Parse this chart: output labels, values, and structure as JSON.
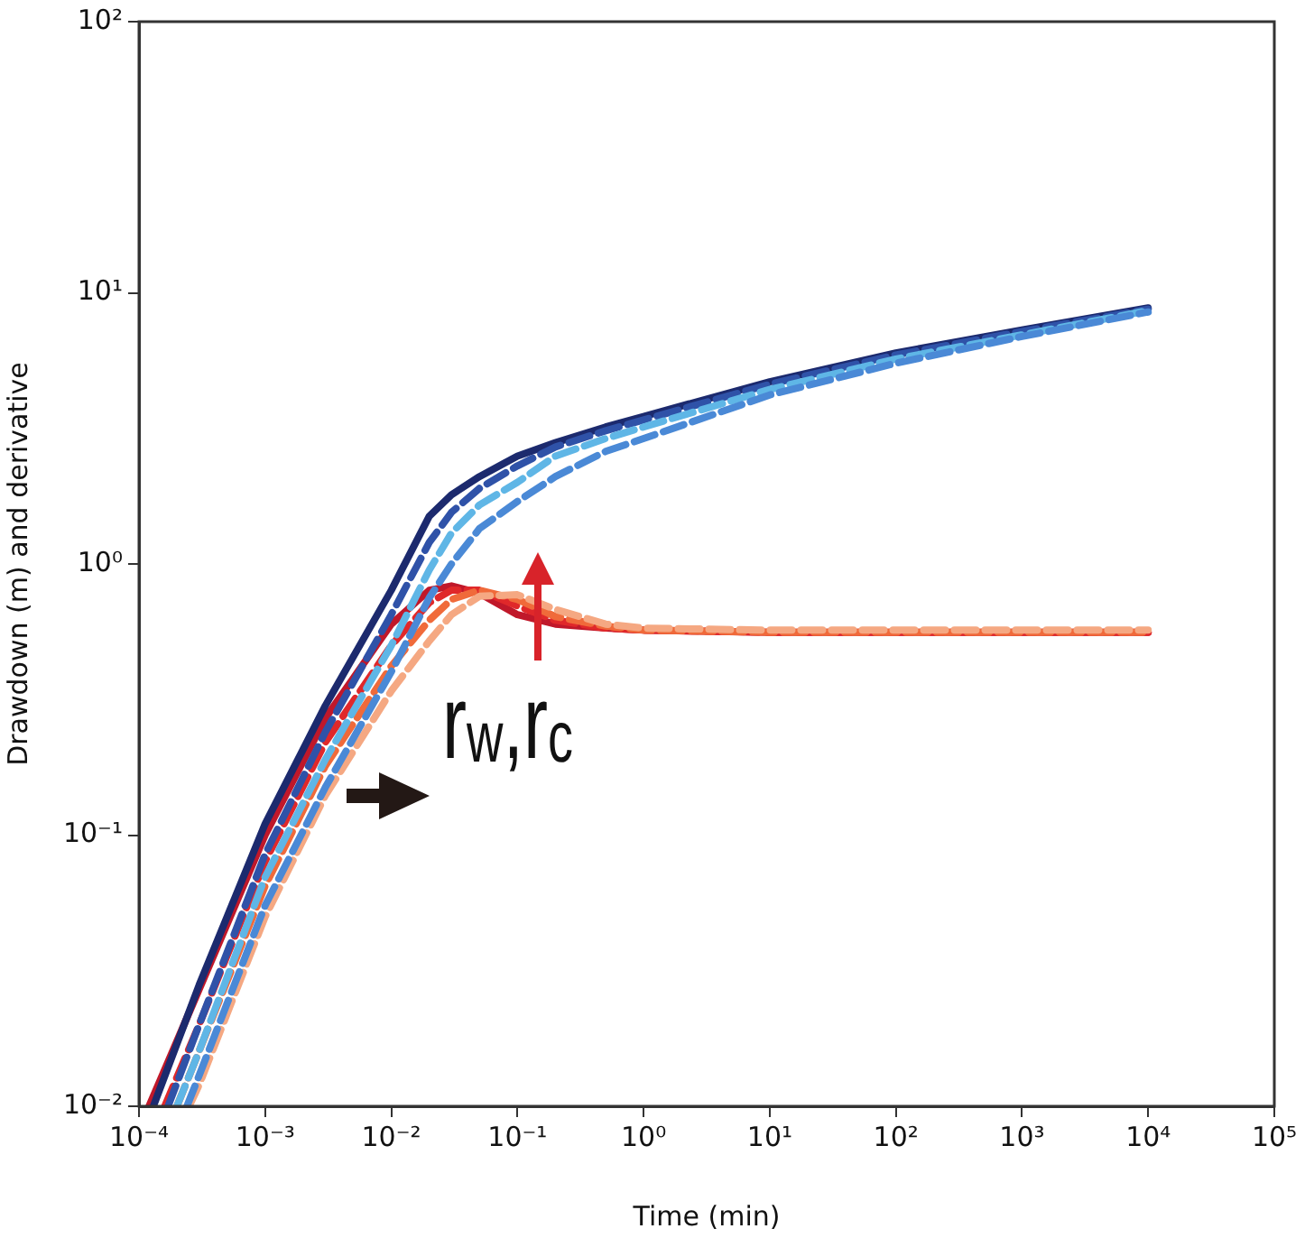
{
  "chart_data": {
    "type": "line",
    "xlabel": "Time (min)",
    "ylabel": "Drawdown (m) and derivative",
    "log": "xy",
    "grid": false,
    "legend": false,
    "marker": "none",
    "xlim": [
      0.0001,
      100000
    ],
    "ylim": [
      0.01,
      100
    ],
    "xticks": [
      {
        "value": 0.0001,
        "label": "10⁻⁴"
      },
      {
        "value": 0.001,
        "label": "10⁻³"
      },
      {
        "value": 0.01,
        "label": "10⁻²"
      },
      {
        "value": 0.1,
        "label": "10⁻¹"
      },
      {
        "value": 1,
        "label": "10⁰"
      },
      {
        "value": 10,
        "label": "10¹"
      },
      {
        "value": 100,
        "label": "10²"
      },
      {
        "value": 1000,
        "label": "10³"
      },
      {
        "value": 10000,
        "label": "10⁴"
      },
      {
        "value": 100000,
        "label": "10⁵"
      }
    ],
    "yticks": [
      {
        "value": 0.01,
        "label": "10⁻²"
      },
      {
        "value": 0.1,
        "label": "10⁻¹"
      },
      {
        "value": 1,
        "label": "10⁰"
      },
      {
        "value": 10,
        "label": "10¹"
      },
      {
        "value": 100,
        "label": "10²"
      }
    ],
    "annotations": [
      "r$_{w}$,r$_{c}$"
    ],
    "series": [
      {
        "color": "#4a89d6",
        "line_style": "dashed",
        "x": [
          0.00024,
          0.0003,
          0.001,
          0.003,
          0.01,
          0.02,
          0.03,
          0.05,
          0.1,
          0.2,
          0.5,
          1,
          10,
          100,
          1000,
          10000
        ],
        "values": [
          0.01,
          0.013,
          0.055,
          0.15,
          0.4,
          0.75,
          1.0,
          1.35,
          1.7,
          2.1,
          2.6,
          2.9,
          4.2,
          5.5,
          6.9,
          8.5
        ]
      },
      {
        "color": "#5fb6e6",
        "line_style": "dashed",
        "x": [
          0.0002,
          0.0003,
          0.001,
          0.003,
          0.01,
          0.02,
          0.03,
          0.05,
          0.1,
          0.2,
          0.5,
          1,
          10,
          100,
          1000,
          10000
        ],
        "values": [
          0.01,
          0.016,
          0.07,
          0.19,
          0.5,
          0.95,
          1.3,
          1.65,
          2.0,
          2.5,
          2.9,
          3.2,
          4.4,
          5.7,
          7.0,
          8.6
        ]
      },
      {
        "color": "#2f52a8",
        "line_style": "dashed",
        "x": [
          0.00017,
          0.0003,
          0.001,
          0.003,
          0.01,
          0.02,
          0.03,
          0.05,
          0.1,
          0.2,
          0.5,
          1,
          10,
          100,
          1000,
          10000
        ],
        "values": [
          0.01,
          0.02,
          0.085,
          0.24,
          0.65,
          1.2,
          1.55,
          1.9,
          2.3,
          2.7,
          3.1,
          3.4,
          4.6,
          5.9,
          7.2,
          8.7
        ]
      },
      {
        "color": "#1c2a6e",
        "line_style": "solid",
        "x": [
          0.00013,
          0.0003,
          0.001,
          0.003,
          0.01,
          0.02,
          0.03,
          0.05,
          0.1,
          0.2,
          0.5,
          1,
          10,
          100,
          1000,
          10000
        ],
        "values": [
          0.01,
          0.028,
          0.11,
          0.3,
          0.8,
          1.5,
          1.8,
          2.1,
          2.5,
          2.8,
          3.2,
          3.5,
          4.7,
          6.0,
          7.3,
          8.8
        ]
      },
      {
        "color": "#f5a882",
        "line_style": "dashed",
        "x": [
          0.00025,
          0.0003,
          0.001,
          0.003,
          0.01,
          0.02,
          0.03,
          0.05,
          0.1,
          0.2,
          0.5,
          1,
          10,
          100,
          1000,
          10000
        ],
        "values": [
          0.01,
          0.012,
          0.05,
          0.14,
          0.34,
          0.52,
          0.65,
          0.76,
          0.77,
          0.68,
          0.6,
          0.58,
          0.57,
          0.57,
          0.57,
          0.57
        ]
      },
      {
        "color": "#f06a3a",
        "line_style": "dashed",
        "x": [
          0.0002,
          0.0003,
          0.001,
          0.003,
          0.01,
          0.02,
          0.03,
          0.05,
          0.1,
          0.2,
          0.5,
          1,
          10,
          100,
          1000,
          10000
        ],
        "values": [
          0.01,
          0.016,
          0.065,
          0.18,
          0.42,
          0.62,
          0.74,
          0.8,
          0.74,
          0.64,
          0.59,
          0.57,
          0.56,
          0.56,
          0.56,
          0.56
        ]
      },
      {
        "color": "#e0282a",
        "line_style": "dashed",
        "x": [
          0.00016,
          0.0003,
          0.001,
          0.003,
          0.01,
          0.02,
          0.03,
          0.05,
          0.1,
          0.2,
          0.5,
          1,
          10,
          100,
          1000,
          10000
        ],
        "values": [
          0.01,
          0.02,
          0.08,
          0.22,
          0.5,
          0.72,
          0.8,
          0.8,
          0.7,
          0.62,
          0.58,
          0.57,
          0.56,
          0.56,
          0.56,
          0.56
        ]
      },
      {
        "color": "#c0182a",
        "line_style": "solid",
        "x": [
          0.00012,
          0.0003,
          0.001,
          0.003,
          0.01,
          0.02,
          0.03,
          0.05,
          0.1,
          0.2,
          0.5,
          1,
          10,
          100,
          1000,
          10000
        ],
        "values": [
          0.01,
          0.027,
          0.1,
          0.27,
          0.6,
          0.8,
          0.83,
          0.78,
          0.65,
          0.6,
          0.58,
          0.57,
          0.56,
          0.56,
          0.56,
          0.56
        ]
      }
    ]
  }
}
